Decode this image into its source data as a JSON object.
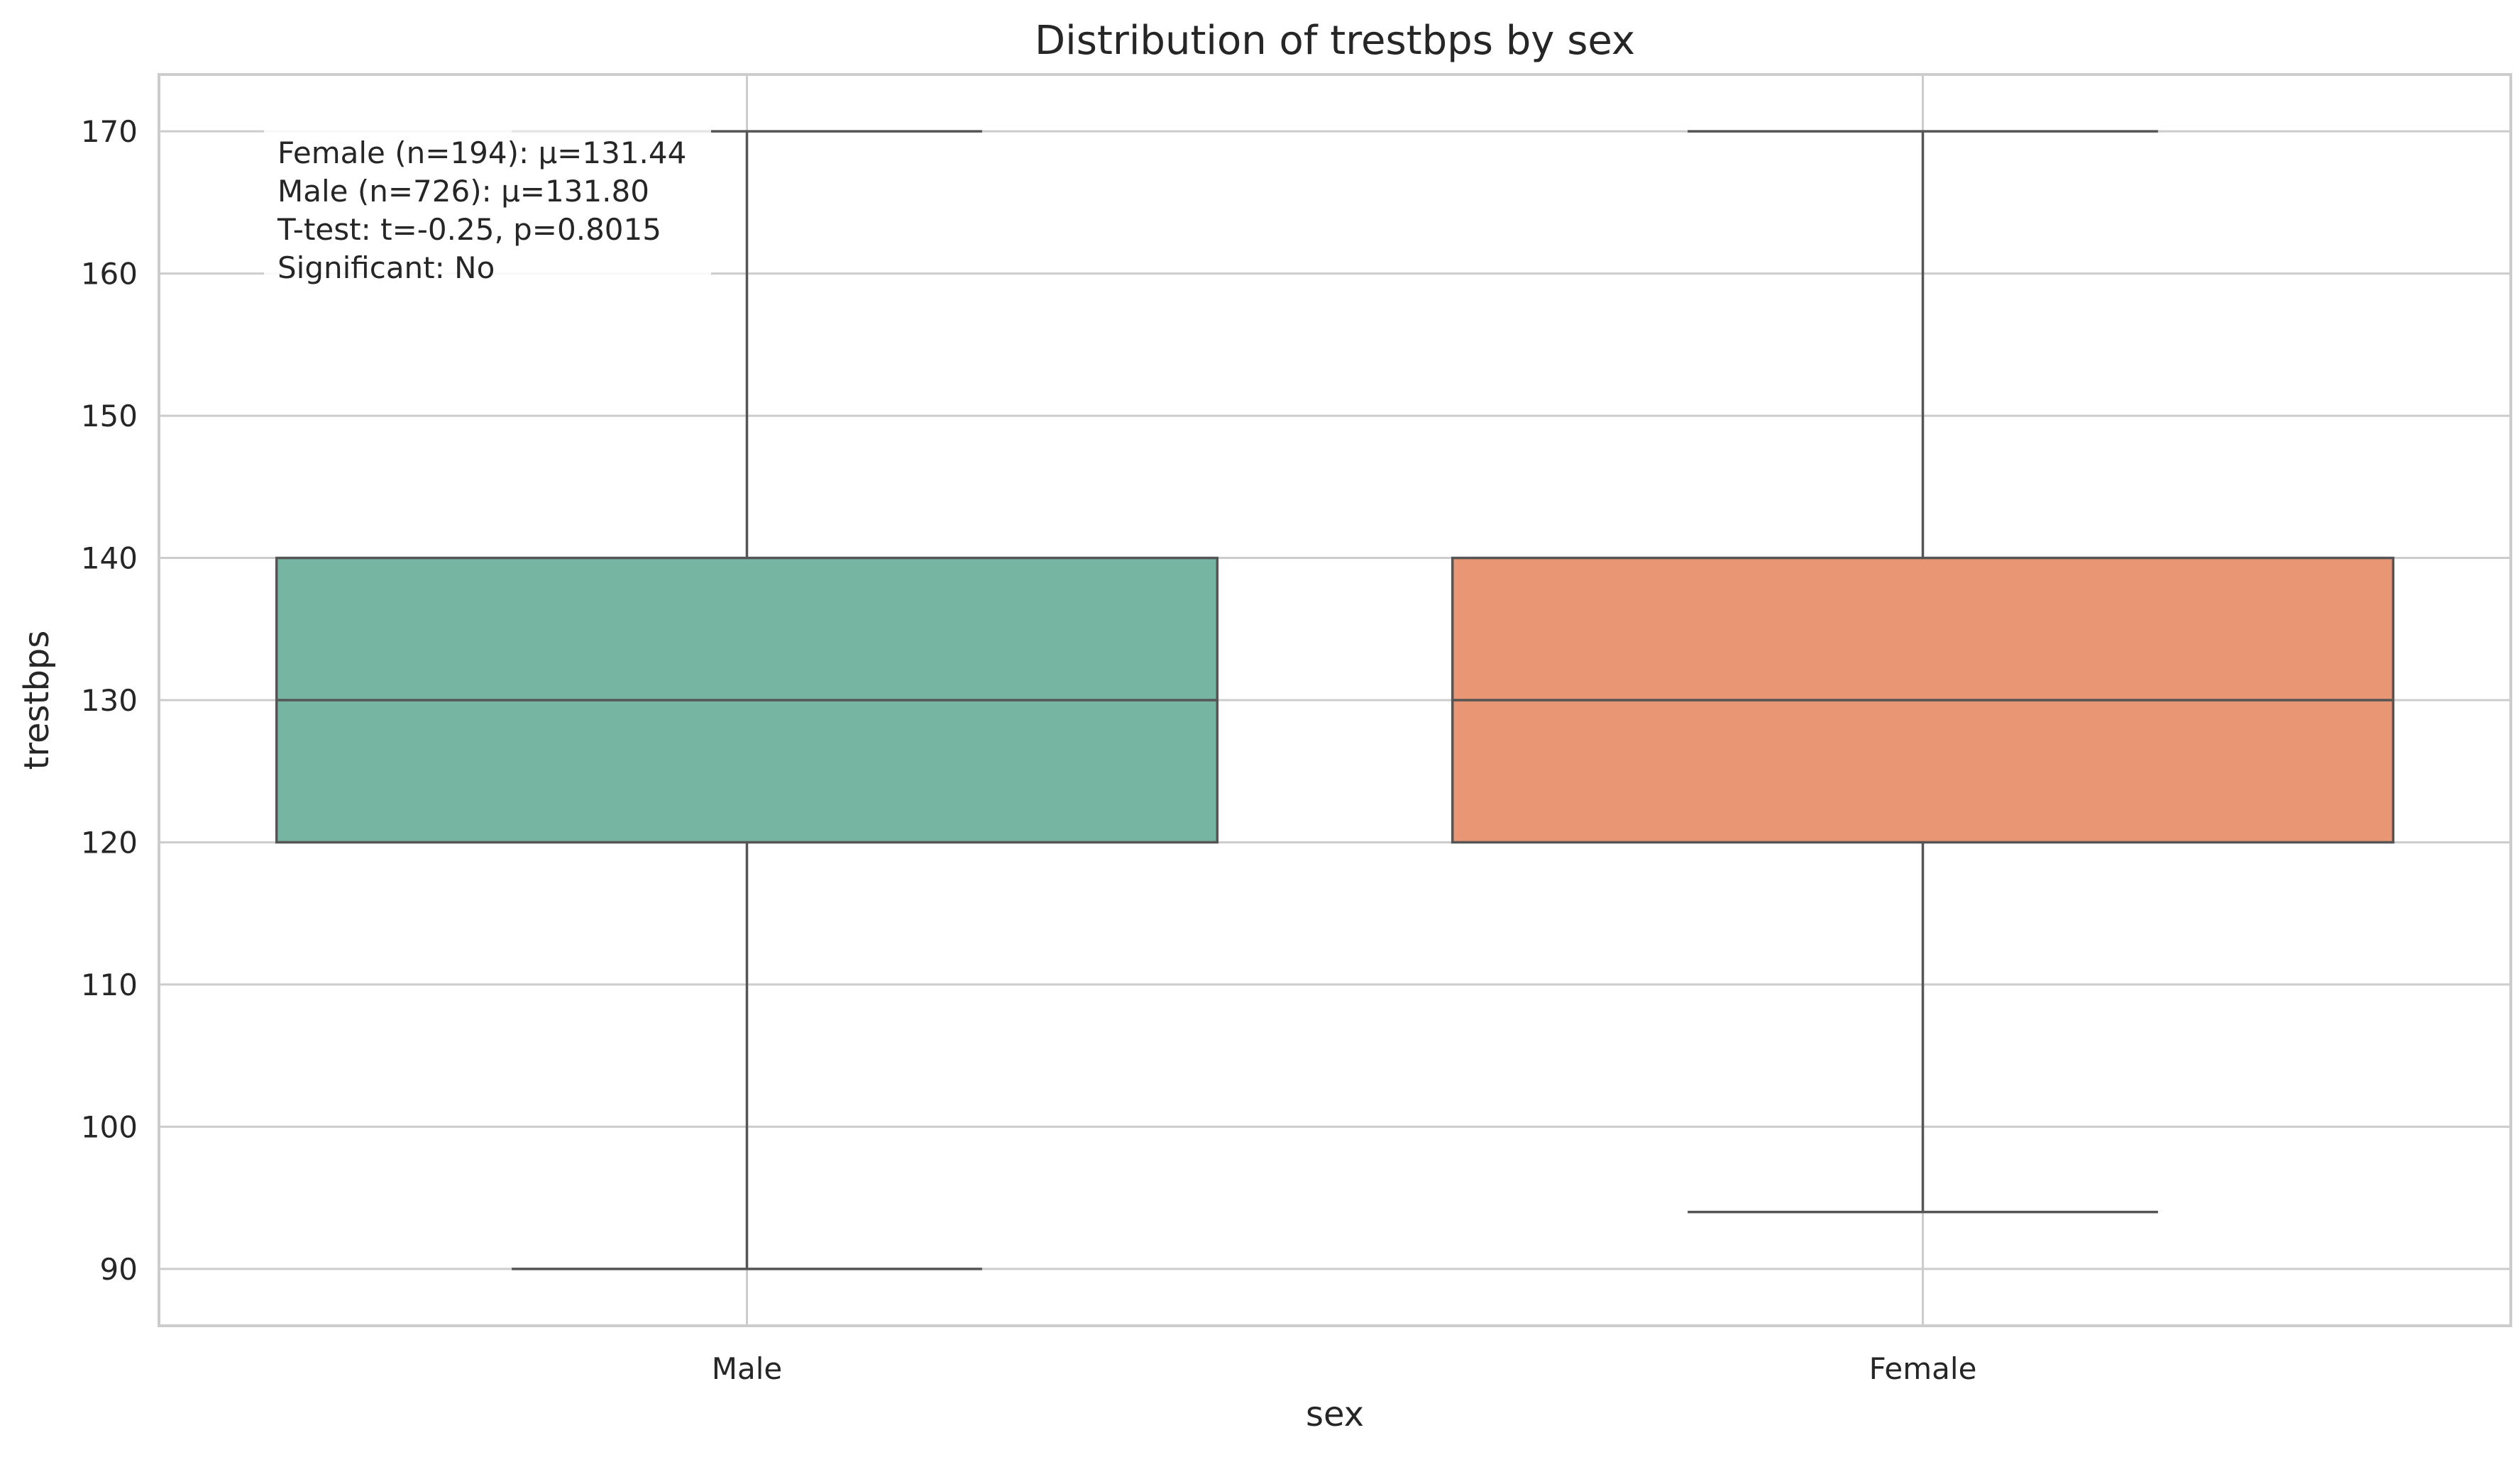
{
  "chart_data": {
    "type": "box",
    "title": "Distribution of trestbps by sex",
    "xlabel": "sex",
    "ylabel": "trestbps",
    "ylim": [
      86,
      174
    ],
    "yticks": [
      90,
      100,
      110,
      120,
      130,
      140,
      150,
      160,
      170
    ],
    "grid": true,
    "categories": [
      "Male",
      "Female"
    ],
    "boxes": [
      {
        "category": "Male",
        "whisker_low": 90,
        "q1": 120,
        "median": 130,
        "q3": 140,
        "whisker_high": 170,
        "color": "#75b5a1"
      },
      {
        "category": "Female",
        "whisker_low": 94,
        "q1": 120,
        "median": 130,
        "q3": 140,
        "whisker_high": 170,
        "color": "#e89674"
      }
    ],
    "annotation_lines": [
      "Female (n=194): μ=131.44",
      "Male (n=726): μ=131.80",
      "T-test: t=-0.25, p=0.8015",
      "Significant: No"
    ]
  }
}
